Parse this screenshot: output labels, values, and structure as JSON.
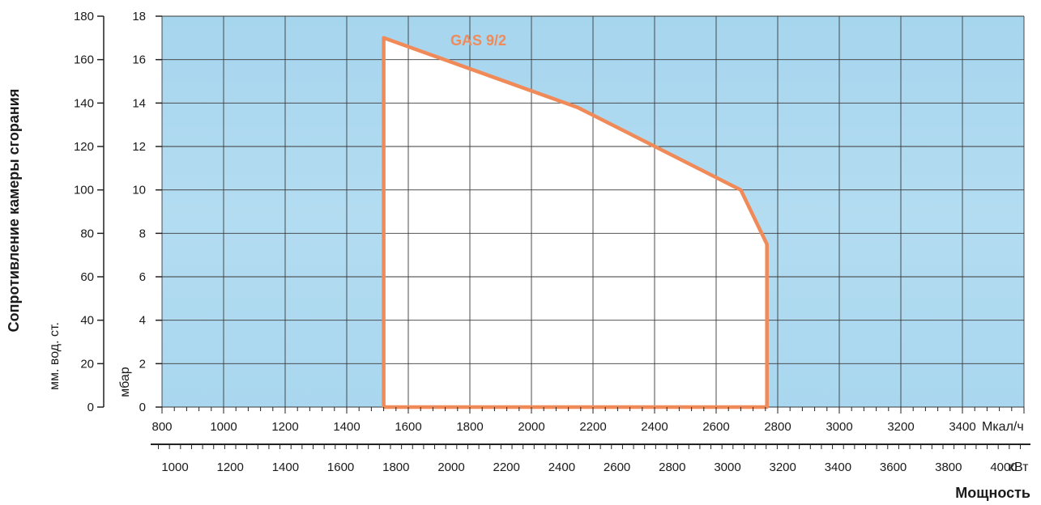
{
  "chart_data": {
    "type": "area",
    "colors": {
      "plot_background": "#a9d6ee",
      "envelope": "#f08a58",
      "grid": "#3a3a3a"
    },
    "grid": true,
    "series": [
      {
        "name": "GAS 9/2",
        "x": [
          1520,
          1520,
          2150,
          2680,
          2765,
          2765,
          1520
        ],
        "y": [
          0,
          17,
          13.8,
          10,
          7.5,
          0,
          0
        ],
        "x_unit": "Мкал/ч",
        "y_unit": "мбар"
      }
    ],
    "x_axis_primary": {
      "unit_label": "Мкал/ч",
      "range": [
        800,
        3600
      ],
      "ticks": [
        "800",
        "1000",
        "1200",
        "1400",
        "1600",
        "1800",
        "2000",
        "2200",
        "2400",
        "2600",
        "2800",
        "3000",
        "3200",
        "3400"
      ]
    },
    "x_axis_secondary": {
      "unit_label": "кВт",
      "ticks": [
        "1000",
        "1200",
        "1400",
        "1600",
        "1800",
        "2000",
        "2200",
        "2400",
        "2600",
        "2800",
        "3000",
        "3200",
        "3400",
        "3600",
        "3800",
        "4000"
      ]
    },
    "xlabel": "Мощность",
    "y_axis_mbar": {
      "unit_label": "мбар",
      "range": [
        0,
        18
      ],
      "ticks": [
        "0",
        "2",
        "4",
        "6",
        "8",
        "10",
        "12",
        "14",
        "16",
        "18"
      ]
    },
    "y_axis_mm": {
      "unit_label": "мм. вод. ст.",
      "range": [
        0,
        180
      ],
      "ticks": [
        "0",
        "20",
        "40",
        "60",
        "80",
        "100",
        "120",
        "140",
        "160",
        "180"
      ]
    },
    "ylabel": "Сопротивление камеры сгорания"
  }
}
